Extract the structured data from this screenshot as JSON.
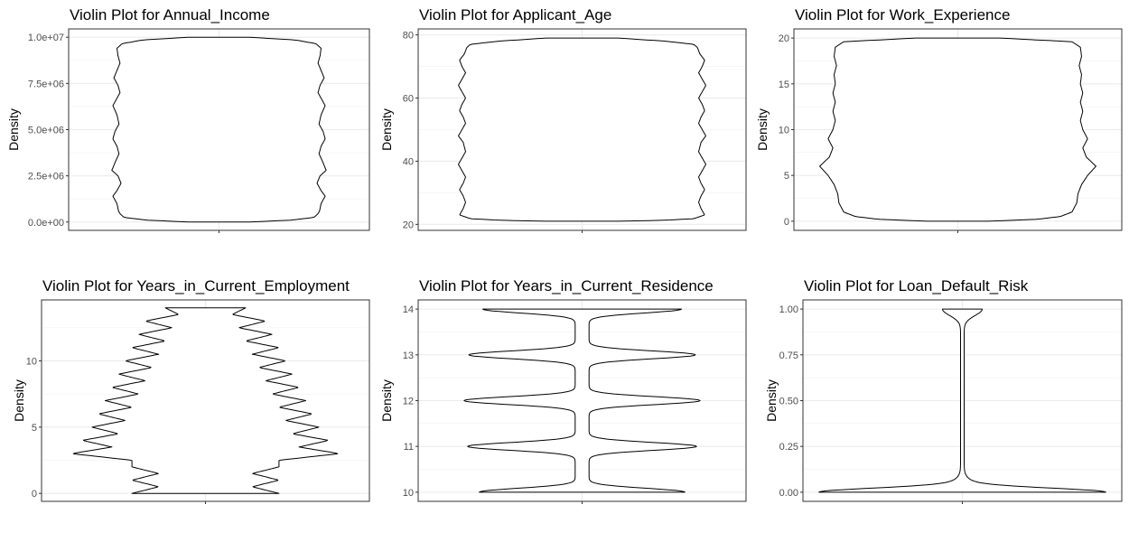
{
  "chart_data": [
    {
      "type": "violin",
      "title": "Violin Plot for Annual_Income",
      "xlabel": "",
      "ylabel": "Density",
      "ylim": [
        -450000,
        10450000
      ],
      "yticks": [
        0,
        2500000,
        5000000,
        7500000,
        10000000
      ],
      "ytick_labels": [
        "0.0e+00",
        "2.5e+06",
        "5.0e+06",
        "7.5e+06",
        "1.0e+07"
      ],
      "grid": true,
      "density": {
        "y": [
          0,
          100000,
          250000,
          450000,
          600000,
          1000000,
          1400000,
          1700000,
          2100000,
          2500000,
          2800000,
          3200000,
          3700000,
          4100000,
          4500000,
          4900000,
          5300000,
          5800000,
          6300000,
          6700000,
          7000000,
          7400000,
          7800000,
          8200000,
          8600000,
          9000000,
          9400000,
          9650000,
          9850000,
          10000000
        ],
        "width": [
          0.3,
          0.7,
          0.93,
          0.97,
          0.985,
          1.0,
          1.04,
          1.0,
          0.96,
          0.99,
          1.05,
          1.02,
          0.98,
          1.0,
          1.04,
          1.02,
          0.98,
          1.0,
          1.04,
          1.0,
          0.97,
          0.99,
          1.03,
          1.0,
          0.97,
          0.99,
          1.0,
          0.95,
          0.75,
          0.3
        ]
      }
    },
    {
      "type": "violin",
      "title": "Violin Plot for Applicant_Age",
      "xlabel": "",
      "ylabel": "Density",
      "ylim": [
        18.1,
        81.9
      ],
      "yticks": [
        20,
        40,
        60,
        80
      ],
      "ytick_labels": [
        "20",
        "40",
        "60",
        "80"
      ],
      "grid": true,
      "density": {
        "y": [
          21,
          21.3,
          21.8,
          23,
          25,
          27,
          29,
          31,
          33,
          35,
          37,
          39,
          41,
          43,
          46,
          48,
          50,
          52,
          54,
          56,
          58,
          60,
          62,
          64,
          66,
          68,
          70,
          72,
          74,
          76,
          77,
          78,
          79
        ],
        "width": [
          0.3,
          0.7,
          0.93,
          1.02,
          0.99,
          0.97,
          0.99,
          1.02,
          0.99,
          0.97,
          1.0,
          1.03,
          1.0,
          0.97,
          0.99,
          1.03,
          1.0,
          0.97,
          0.99,
          1.02,
          1.0,
          0.97,
          1.0,
          1.03,
          1.0,
          0.97,
          1.0,
          1.02,
          0.98,
          0.96,
          0.93,
          0.7,
          0.3
        ]
      }
    },
    {
      "type": "violin",
      "title": "Violin Plot for Work_Experience",
      "xlabel": "",
      "ylabel": "Density",
      "ylim": [
        -1,
        21
      ],
      "yticks": [
        0,
        5,
        10,
        15,
        20
      ],
      "ytick_labels": [
        "0",
        "5",
        "10",
        "15",
        "20"
      ],
      "grid": true,
      "density": {
        "y": [
          0,
          0.2,
          0.5,
          1,
          1.5,
          2,
          3,
          4,
          5,
          6,
          7,
          8,
          9,
          10,
          11,
          12,
          13,
          14,
          15,
          16,
          17,
          18,
          19,
          19.6,
          20
        ],
        "width": [
          0.25,
          0.65,
          0.85,
          0.95,
          0.97,
          0.99,
          1.0,
          1.03,
          1.08,
          1.15,
          1.07,
          1.04,
          1.08,
          1.04,
          1.02,
          1.04,
          1.02,
          1.04,
          1.02,
          1.03,
          1.01,
          1.03,
          1.02,
          0.95,
          0.35
        ]
      }
    },
    {
      "type": "violin",
      "title": "Violin Plot for Years_in_Current_Employment",
      "xlabel": "",
      "ylabel": "Density",
      "ylim": [
        -0.6,
        14.6
      ],
      "yticks": [
        0,
        5,
        10
      ],
      "ytick_labels": [
        "0",
        "5",
        "10"
      ],
      "grid": true,
      "density": {
        "y": [
          0,
          0.5,
          1,
          1.5,
          2,
          2.5,
          3,
          3.5,
          4,
          4.5,
          5,
          5.5,
          6,
          6.5,
          7,
          7.5,
          8,
          8.5,
          9,
          9.5,
          10,
          10.5,
          11,
          11.5,
          12,
          12.5,
          13,
          13.5,
          14
        ],
        "width": [
          0.55,
          0.35,
          0.55,
          0.35,
          0.55,
          0.55,
          1.0,
          0.7,
          0.92,
          0.65,
          0.85,
          0.6,
          0.8,
          0.55,
          0.75,
          0.5,
          0.7,
          0.45,
          0.65,
          0.4,
          0.6,
          0.35,
          0.55,
          0.3,
          0.5,
          0.25,
          0.45,
          0.2,
          0.3
        ]
      }
    },
    {
      "type": "violin",
      "title": "Violin Plot for Years_in_Current_Residence",
      "xlabel": "",
      "ylabel": "Density",
      "ylim": [
        9.8,
        14.2
      ],
      "yticks": [
        10,
        11,
        12,
        13,
        14
      ],
      "ytick_labels": [
        "10",
        "11",
        "12",
        "13",
        "14"
      ],
      "grid": true,
      "density": {
        "y": [
          10,
          11,
          12,
          13,
          14
        ],
        "width": [
          0.83,
          0.93,
          0.96,
          0.92,
          0.8
        ]
      }
    },
    {
      "type": "violin",
      "title": "Violin Plot for Loan_Default_Risk",
      "xlabel": "",
      "ylabel": "Density",
      "ylim": [
        -0.05,
        1.05
      ],
      "yticks": [
        0,
        0.25,
        0.5,
        0.75,
        1
      ],
      "ytick_labels": [
        "0.00",
        "0.25",
        "0.50",
        "0.75",
        "1.00"
      ],
      "grid": true,
      "density": {
        "y": [
          0,
          1
        ],
        "width": [
          1.0,
          0.15
        ]
      }
    }
  ]
}
